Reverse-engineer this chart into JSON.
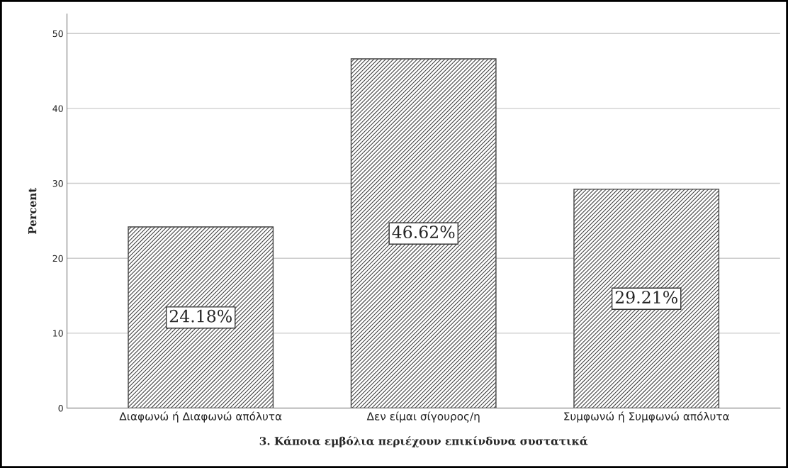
{
  "chart_data": {
    "type": "bar",
    "xlabel": "3. Κάποια εμβόλια περιέχουν επικίνδυνα συστατικά",
    "ylabel": "Percent",
    "categories": [
      "Διαφωνώ ή Διαφωνώ απόλυτα",
      "Δεν είμαι σίγουρος/η",
      "Συμφωνώ ή Συμφωνώ απόλυτα"
    ],
    "values": [
      24.18,
      46.62,
      29.21
    ],
    "value_labels": [
      "24.18%",
      "46.62%",
      "29.21%"
    ],
    "color": "#444444",
    "ylim": [
      0,
      52.6
    ],
    "yticks": [
      0,
      10,
      20,
      30,
      40,
      50
    ],
    "grid": "y"
  }
}
